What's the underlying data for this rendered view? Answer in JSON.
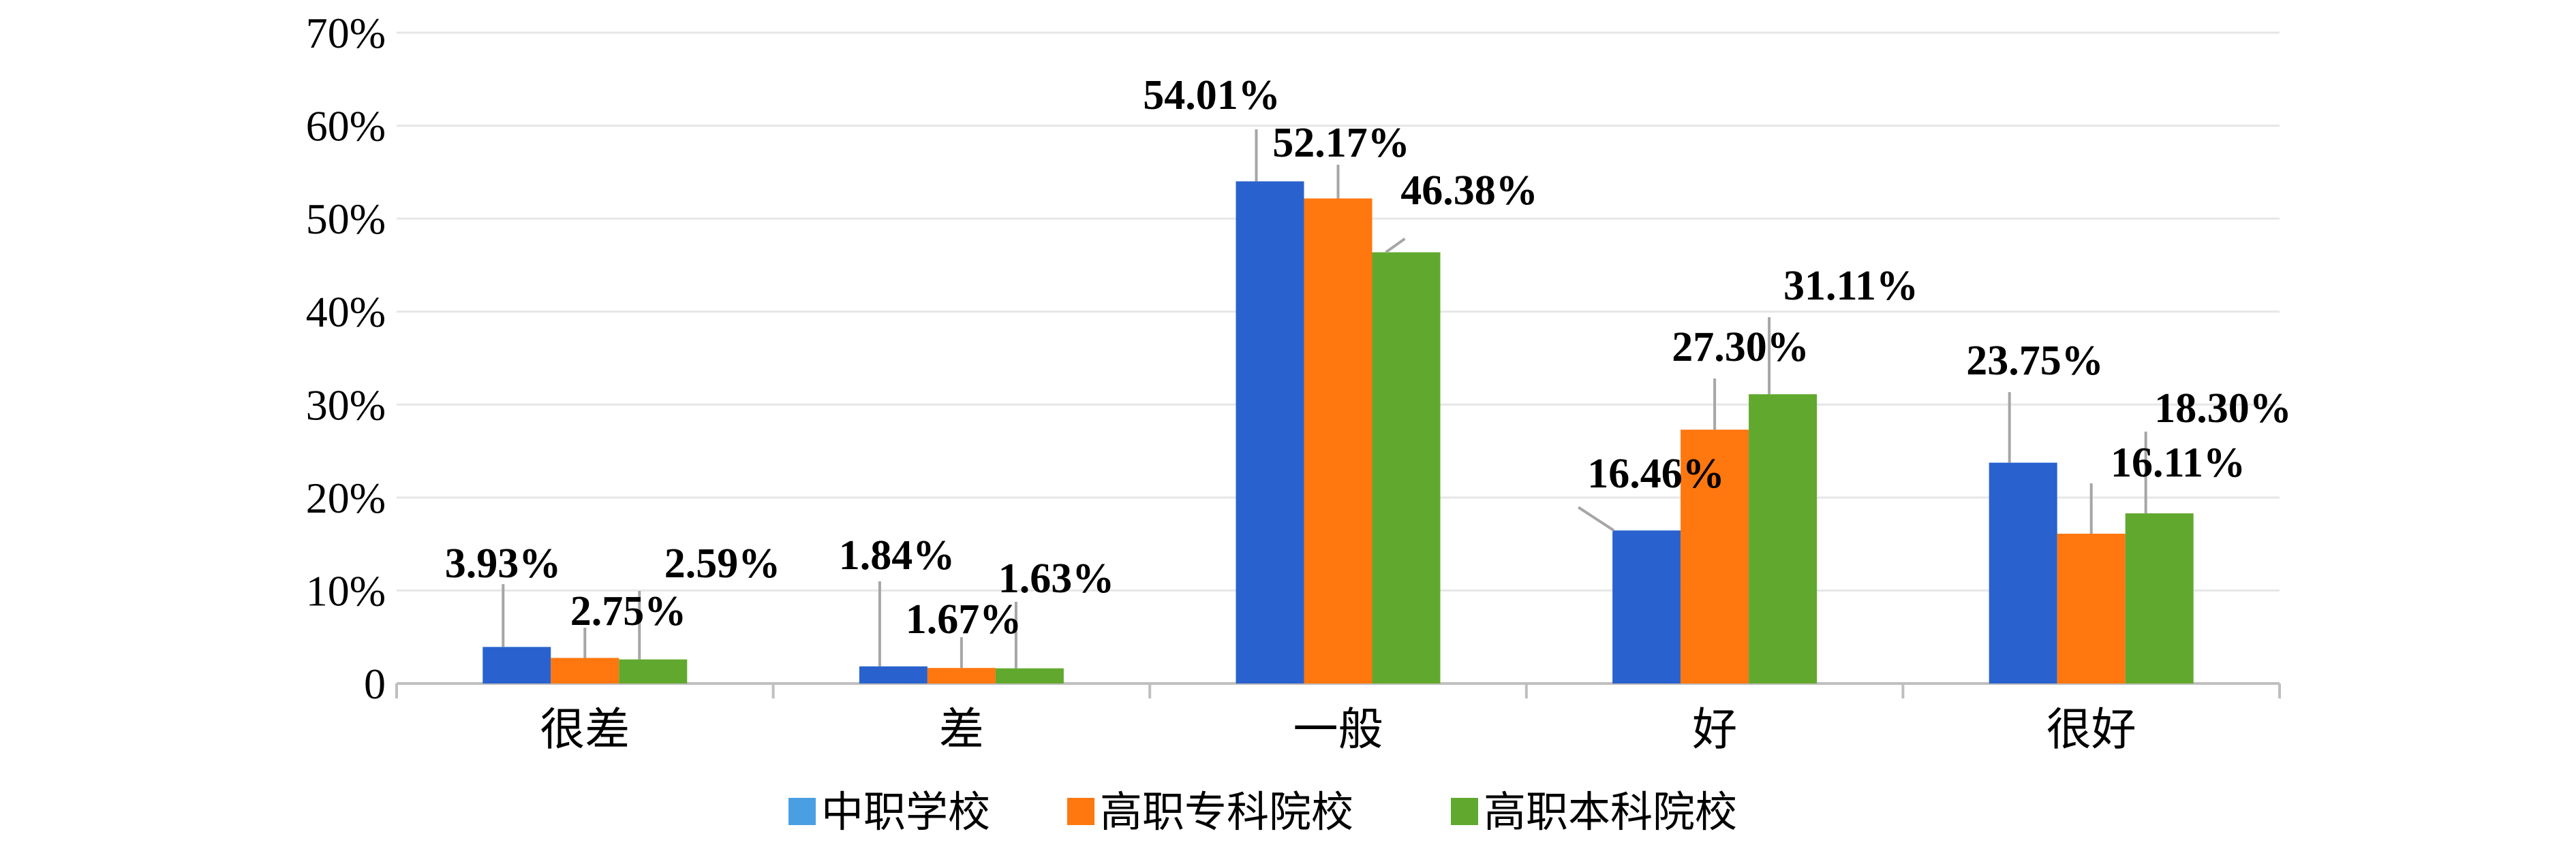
{
  "colors": {
    "series": [
      "#2962CE",
      "#FF770F",
      "#60A92E"
    ],
    "legend_swatch": [
      "#4A9FE3",
      "#FF770F",
      "#60A92E"
    ],
    "grid": "#E6E6E6",
    "axis": "#BFBFBF",
    "leader": "#A6A6A6"
  },
  "chart_data": {
    "type": "bar",
    "title": "",
    "xlabel": "",
    "ylabel": "",
    "ylim": [
      0,
      70
    ],
    "yticks": [
      {
        "value": 0,
        "label": "0"
      },
      {
        "value": 10,
        "label": "10%"
      },
      {
        "value": 20,
        "label": "20%"
      },
      {
        "value": 30,
        "label": "30%"
      },
      {
        "value": 40,
        "label": "40%"
      },
      {
        "value": 50,
        "label": "50%"
      },
      {
        "value": 60,
        "label": "60%"
      },
      {
        "value": 70,
        "label": "70%"
      }
    ],
    "grid": true,
    "legend_position": "bottom",
    "categories": [
      "很差",
      "差",
      "一般",
      "好",
      "很好"
    ],
    "series": [
      {
        "name": "中职学校",
        "values": [
          3.93,
          1.84,
          54.01,
          16.46,
          23.75
        ],
        "labels": [
          "3.93%",
          "1.84%",
          "54.01%",
          "16.46%",
          "23.75%"
        ]
      },
      {
        "name": "高职专科院校",
        "values": [
          2.75,
          1.67,
          52.17,
          27.3,
          16.11
        ],
        "labels": [
          "2.75%",
          "1.67%",
          "52.17%",
          "27.30%",
          "16.11%"
        ]
      },
      {
        "name": "高职本科院校",
        "values": [
          2.59,
          1.63,
          46.38,
          31.11,
          18.3
        ],
        "labels": [
          "2.59%",
          "1.63%",
          "46.38%",
          "31.11%",
          "18.30%"
        ]
      }
    ]
  }
}
